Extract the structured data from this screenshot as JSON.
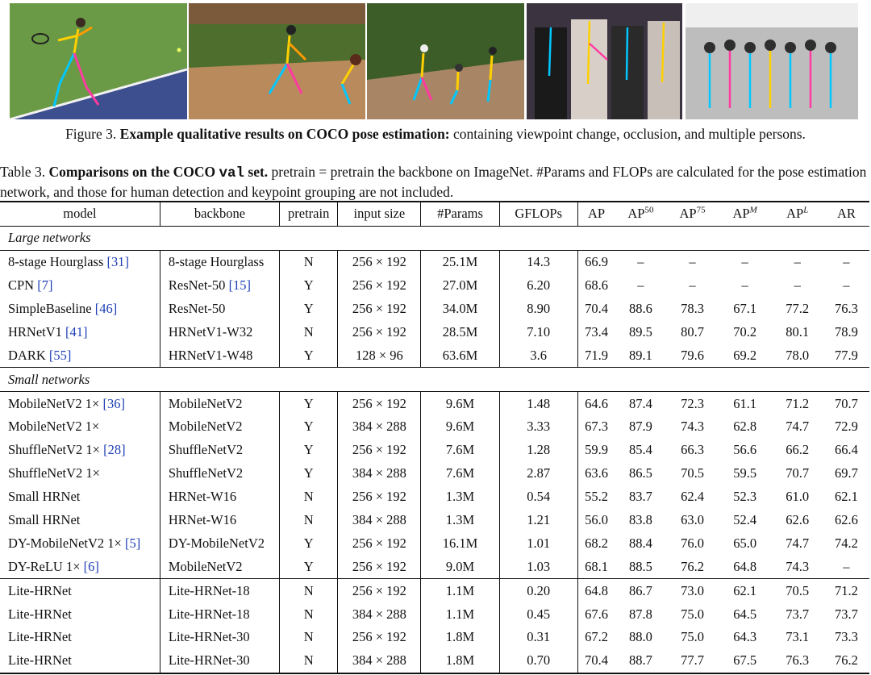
{
  "figure": {
    "images": [
      {
        "name": "tennis-player-pose",
        "bg": "#5e8f3f",
        "accent": "#3a4f8f"
      },
      {
        "name": "baseball-batter-catcher-pose",
        "bg": "#4f6e2f",
        "accent": "#b5865a"
      },
      {
        "name": "baseball-field-multi-person-pose",
        "bg": "#3f5f2a",
        "accent": "#a98767"
      },
      {
        "name": "crowd-occlusion-pose",
        "bg": "#4a3f4a",
        "accent": "#e0d8d0"
      },
      {
        "name": "group-photo-pose",
        "bg": "#cfcfcf",
        "accent": "#3c3c3c"
      }
    ],
    "caption_label": "Figure 3.",
    "caption_bold": "Example qualitative results on COCO pose estimation:",
    "caption_rest": "containing viewpoint change, occlusion, and multiple persons."
  },
  "table": {
    "caption_label": "Table 3.",
    "caption_bold_a": "Comparisons on the COCO",
    "caption_mono": "val",
    "caption_bold_b": "set.",
    "caption_rest": "pretrain = pretrain the backbone on ImageNet. #Params and FLOPs are calculated for the pose estimation network, and those for human detection and keypoint grouping are not included.",
    "headers": {
      "model": "model",
      "backbone": "backbone",
      "pretrain": "pretrain",
      "input_size": "input size",
      "params": "#Params",
      "gflops": "GFLOPs",
      "ap": "AP",
      "ap50_base": "AP",
      "ap50_sup": "50",
      "ap75_base": "AP",
      "ap75_sup": "75",
      "apm_base": "AP",
      "apm_sup": "M",
      "apl_base": "AP",
      "apl_sup": "L",
      "ar": "AR"
    },
    "sections": {
      "large": "Large networks",
      "small": "Small networks"
    },
    "large_rows": [
      {
        "model": "8-stage Hourglass",
        "cite": "[31]",
        "backbone": "8-stage Hourglass",
        "backbone_cite": "",
        "pretrain": "N",
        "input": "256 × 192",
        "params": "25.1M",
        "gflops": "14.3",
        "ap": "66.9",
        "ap50": "–",
        "ap75": "–",
        "apm": "–",
        "apl": "–",
        "ar": "–"
      },
      {
        "model": "CPN",
        "cite": "[7]",
        "backbone": "ResNet-50",
        "backbone_cite": "[15]",
        "pretrain": "Y",
        "input": "256 × 192",
        "params": "27.0M",
        "gflops": "6.20",
        "ap": "68.6",
        "ap50": "–",
        "ap75": "–",
        "apm": "–",
        "apl": "–",
        "ar": "–"
      },
      {
        "model": "SimpleBaseline",
        "cite": "[46]",
        "backbone": "ResNet-50",
        "backbone_cite": "",
        "pretrain": "Y",
        "input": "256 × 192",
        "params": "34.0M",
        "gflops": "8.90",
        "ap": "70.4",
        "ap50": "88.6",
        "ap75": "78.3",
        "apm": "67.1",
        "apl": "77.2",
        "ar": "76.3"
      },
      {
        "model": "HRNetV1",
        "cite": "[41]",
        "backbone": "HRNetV1-W32",
        "backbone_cite": "",
        "pretrain": "N",
        "input": "256 × 192",
        "params": "28.5M",
        "gflops": "7.10",
        "ap": "73.4",
        "ap50": "89.5",
        "ap75": "80.7",
        "apm": "70.2",
        "apl": "80.1",
        "ar": "78.9"
      },
      {
        "model": "DARK",
        "cite": "[55]",
        "backbone": "HRNetV1-W48",
        "backbone_cite": "",
        "pretrain": "Y",
        "input": "128 × 96",
        "params": "63.6M",
        "gflops": "3.6",
        "ap": "71.9",
        "ap50": "89.1",
        "ap75": "79.6",
        "apm": "69.2",
        "apl": "78.0",
        "ar": "77.9"
      }
    ],
    "small_rows": [
      {
        "model": "MobileNetV2 1×",
        "cite": "[36]",
        "backbone": "MobileNetV2",
        "backbone_cite": "",
        "pretrain": "Y",
        "input": "256 × 192",
        "params": "9.6M",
        "gflops": "1.48",
        "ap": "64.6",
        "ap50": "87.4",
        "ap75": "72.3",
        "apm": "61.1",
        "apl": "71.2",
        "ar": "70.7"
      },
      {
        "model": "MobileNetV2 1×",
        "cite": "",
        "backbone": "MobileNetV2",
        "backbone_cite": "",
        "pretrain": "Y",
        "input": "384 × 288",
        "params": "9.6M",
        "gflops": "3.33",
        "ap": "67.3",
        "ap50": "87.9",
        "ap75": "74.3",
        "apm": "62.8",
        "apl": "74.7",
        "ar": "72.9"
      },
      {
        "model": "ShuffleNetV2 1×",
        "cite": "[28]",
        "backbone": "ShuffleNetV2",
        "backbone_cite": "",
        "pretrain": "Y",
        "input": "256 × 192",
        "params": "7.6M",
        "gflops": "1.28",
        "ap": "59.9",
        "ap50": "85.4",
        "ap75": "66.3",
        "apm": "56.6",
        "apl": "66.2",
        "ar": "66.4"
      },
      {
        "model": "ShuffleNetV2 1×",
        "cite": "",
        "backbone": "ShuffleNetV2",
        "backbone_cite": "",
        "pretrain": "Y",
        "input": "384 × 288",
        "params": "7.6M",
        "gflops": "2.87",
        "ap": "63.6",
        "ap50": "86.5",
        "ap75": "70.5",
        "apm": "59.5",
        "apl": "70.7",
        "ar": "69.7"
      },
      {
        "model": "Small HRNet",
        "cite": "",
        "backbone": "HRNet-W16",
        "backbone_cite": "",
        "pretrain": "N",
        "input": "256 × 192",
        "params": "1.3M",
        "gflops": "0.54",
        "ap": "55.2",
        "ap50": "83.7",
        "ap75": "62.4",
        "apm": "52.3",
        "apl": "61.0",
        "ar": "62.1"
      },
      {
        "model": "Small HRNet",
        "cite": "",
        "backbone": "HRNet-W16",
        "backbone_cite": "",
        "pretrain": "N",
        "input": "384 × 288",
        "params": "1.3M",
        "gflops": "1.21",
        "ap": "56.0",
        "ap50": "83.8",
        "ap75": "63.0",
        "apm": "52.4",
        "apl": "62.6",
        "ar": "62.6"
      },
      {
        "model": "DY-MobileNetV2 1×",
        "cite": "[5]",
        "backbone": "DY-MobileNetV2",
        "backbone_cite": "",
        "pretrain": "Y",
        "input": "256 × 192",
        "params": "16.1M",
        "gflops": "1.01",
        "ap": "68.2",
        "ap50": "88.4",
        "ap75": "76.0",
        "apm": "65.0",
        "apl": "74.7",
        "ar": "74.2"
      },
      {
        "model": "DY-ReLU 1×",
        "cite": "[6]",
        "backbone": "MobileNetV2",
        "backbone_cite": "",
        "pretrain": "Y",
        "input": "256 × 192",
        "params": "9.0M",
        "gflops": "1.03",
        "ap": "68.1",
        "ap50": "88.5",
        "ap75": "76.2",
        "apm": "64.8",
        "apl": "74.3",
        "ar": "–"
      }
    ],
    "lite_rows": [
      {
        "model": "Lite-HRNet",
        "cite": "",
        "backbone": "Lite-HRNet-18",
        "backbone_cite": "",
        "pretrain": "N",
        "input": "256 × 192",
        "params": "1.1M",
        "gflops": "0.20",
        "ap": "64.8",
        "ap50": "86.7",
        "ap75": "73.0",
        "apm": "62.1",
        "apl": "70.5",
        "ar": "71.2"
      },
      {
        "model": "Lite-HRNet",
        "cite": "",
        "backbone": "Lite-HRNet-18",
        "backbone_cite": "",
        "pretrain": "N",
        "input": "384 × 288",
        "params": "1.1M",
        "gflops": "0.45",
        "ap": "67.6",
        "ap50": "87.8",
        "ap75": "75.0",
        "apm": "64.5",
        "apl": "73.7",
        "ar": "73.7"
      },
      {
        "model": "Lite-HRNet",
        "cite": "",
        "backbone": "Lite-HRNet-30",
        "backbone_cite": "",
        "pretrain": "N",
        "input": "256 × 192",
        "params": "1.8M",
        "gflops": "0.31",
        "ap": "67.2",
        "ap50": "88.0",
        "ap75": "75.0",
        "apm": "64.3",
        "apl": "73.1",
        "ar": "73.3"
      },
      {
        "model": "Lite-HRNet",
        "cite": "",
        "backbone": "Lite-HRNet-30",
        "backbone_cite": "",
        "pretrain": "N",
        "input": "384 × 288",
        "params": "1.8M",
        "gflops": "0.70",
        "ap": "70.4",
        "ap50": "88.7",
        "ap75": "77.7",
        "apm": "67.5",
        "apl": "76.3",
        "ar": "76.2"
      }
    ]
  }
}
